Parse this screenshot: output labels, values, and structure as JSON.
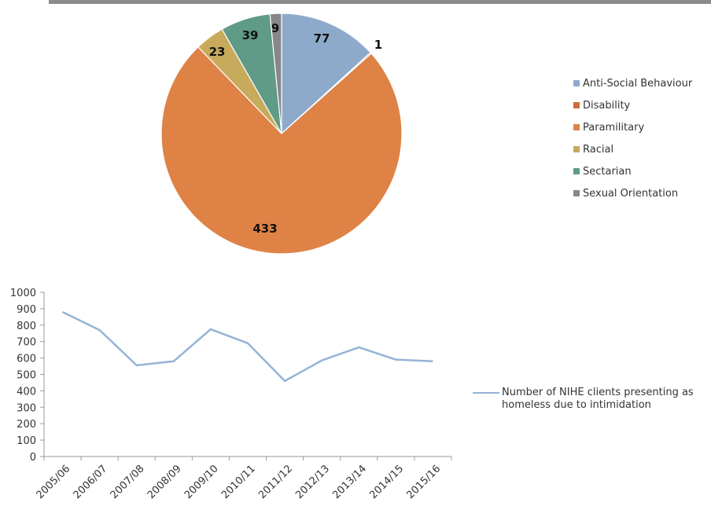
{
  "chart_data": [
    {
      "type": "pie",
      "slices": [
        {
          "name": "Anti-Social Behaviour",
          "value": 77,
          "label": "77",
          "color": "#8eaacb"
        },
        {
          "name": "Disability",
          "value": 1,
          "label": "1",
          "color": "#cf6a3a"
        },
        {
          "name": "Paramilitary",
          "value": 433,
          "label": "433",
          "color": "#de8246"
        },
        {
          "name": "Racial",
          "value": 23,
          "label": "23",
          "color": "#c7aa5c"
        },
        {
          "name": "Sectarian",
          "value": 39,
          "label": "39",
          "color": "#5f9b86"
        },
        {
          "name": "Sexual Orientation",
          "value": 9,
          "label": "9",
          "color": "#878787"
        }
      ],
      "legend_position": "right"
    },
    {
      "type": "line",
      "categories": [
        "2005/06",
        "2006/07",
        "2007/08",
        "2008/09",
        "2009/10",
        "2010/11",
        "2011/12",
        "2012/13",
        "2013/14",
        "2014/15",
        "2015/16"
      ],
      "series": [
        {
          "name": "Number of NIHE clients presenting as homeless due to intimidation",
          "values": [
            880,
            770,
            555,
            580,
            775,
            690,
            460,
            585,
            665,
            590,
            580
          ],
          "color": "#95b3d7"
        }
      ],
      "y_ticks": [
        "0",
        "100",
        "200",
        "300",
        "400",
        "500",
        "600",
        "700",
        "800",
        "900",
        "1000"
      ],
      "ylim": [
        0,
        1000
      ],
      "grid": false,
      "legend_position": "right"
    }
  ]
}
